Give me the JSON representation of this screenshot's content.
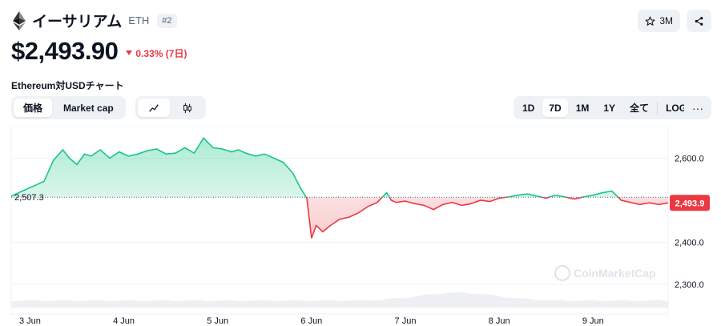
{
  "coin": {
    "name": "イーサリアム",
    "symbol": "ETH",
    "rank": "#2",
    "watchlist_count": "3M",
    "price": "$2,493.90",
    "change": "0.33% (7日)",
    "change_direction": "down",
    "chart_title": "Ethereum対USDチャート"
  },
  "controls": {
    "view_tabs": [
      {
        "label": "価格",
        "active": true
      },
      {
        "label": "Market cap",
        "active": false
      }
    ],
    "chart_type": [
      {
        "icon": "line-chart-icon",
        "active": true
      },
      {
        "icon": "candlestick-icon",
        "active": false
      }
    ],
    "ranges": [
      {
        "label": "1D",
        "active": false
      },
      {
        "label": "7D",
        "active": true
      },
      {
        "label": "1M",
        "active": false
      },
      {
        "label": "1Y",
        "active": false
      },
      {
        "label": "全て",
        "active": false
      },
      {
        "label": "LOG",
        "active": false
      }
    ],
    "more_label": "···"
  },
  "colors": {
    "up": "#16c784",
    "down": "#ea3943",
    "grid": "#eff2f5",
    "text_secondary": "#58667e"
  },
  "chart_data": {
    "type": "line",
    "title": "",
    "xlabel": "",
    "ylabel": "",
    "ylim": [
      2245,
      2660
    ],
    "y_ticks": [
      "2,600.0",
      "2,400.0",
      "2,300.0"
    ],
    "y_tick_values": [
      2600,
      2400,
      2300
    ],
    "x_ticks": [
      "3 Jun",
      "4 Jun",
      "5 Jun",
      "6 Jun",
      "7 Jun",
      "8 Jun",
      "9 Jun"
    ],
    "x_tick_values": [
      0.2,
      1.2,
      2.2,
      3.2,
      4.2,
      5.2,
      6.2
    ],
    "x_range": [
      0,
      7
    ],
    "baseline": 2507.3,
    "baseline_label": "2,507.3",
    "current_value": 2493.9,
    "current_label": "2,493.9",
    "watermark": "CoinMarketCap",
    "series": [
      {
        "x": [
          0,
          0.15,
          0.25,
          0.35,
          0.45,
          0.55,
          0.62,
          0.7,
          0.78,
          0.85,
          0.95,
          1.05,
          1.15,
          1.25,
          1.35,
          1.45,
          1.55,
          1.65,
          1.75,
          1.85,
          1.95,
          2.05,
          2.15,
          2.25,
          2.35,
          2.42,
          2.5,
          2.6,
          2.7,
          2.8,
          2.9,
          3.0,
          3.08,
          3.15,
          3.2,
          3.25,
          3.32,
          3.4,
          3.5,
          3.6,
          3.7,
          3.8,
          3.9,
          4.0,
          4.05,
          4.1,
          4.2,
          4.3,
          4.4,
          4.5,
          4.6,
          4.7,
          4.8,
          4.9,
          5.0,
          5.1,
          5.2,
          5.3,
          5.4,
          5.5,
          5.6,
          5.7,
          5.8,
          5.9,
          6.0,
          6.1,
          6.2,
          6.3,
          6.4,
          6.5,
          6.6,
          6.7,
          6.8,
          6.9,
          7.0
        ],
        "values": [
          2510,
          2525,
          2535,
          2545,
          2595,
          2620,
          2600,
          2585,
          2610,
          2605,
          2620,
          2600,
          2615,
          2605,
          2610,
          2618,
          2622,
          2610,
          2612,
          2625,
          2612,
          2648,
          2625,
          2622,
          2615,
          2620,
          2612,
          2605,
          2610,
          2600,
          2590,
          2565,
          2530,
          2505,
          2410,
          2440,
          2425,
          2440,
          2455,
          2460,
          2470,
          2485,
          2495,
          2518,
          2500,
          2495,
          2498,
          2492,
          2488,
          2478,
          2490,
          2495,
          2488,
          2492,
          2500,
          2497,
          2505,
          2508,
          2512,
          2515,
          2510,
          2505,
          2512,
          2508,
          2503,
          2508,
          2512,
          2518,
          2522,
          2500,
          2495,
          2490,
          2494,
          2490,
          2493.9
        ]
      }
    ]
  }
}
